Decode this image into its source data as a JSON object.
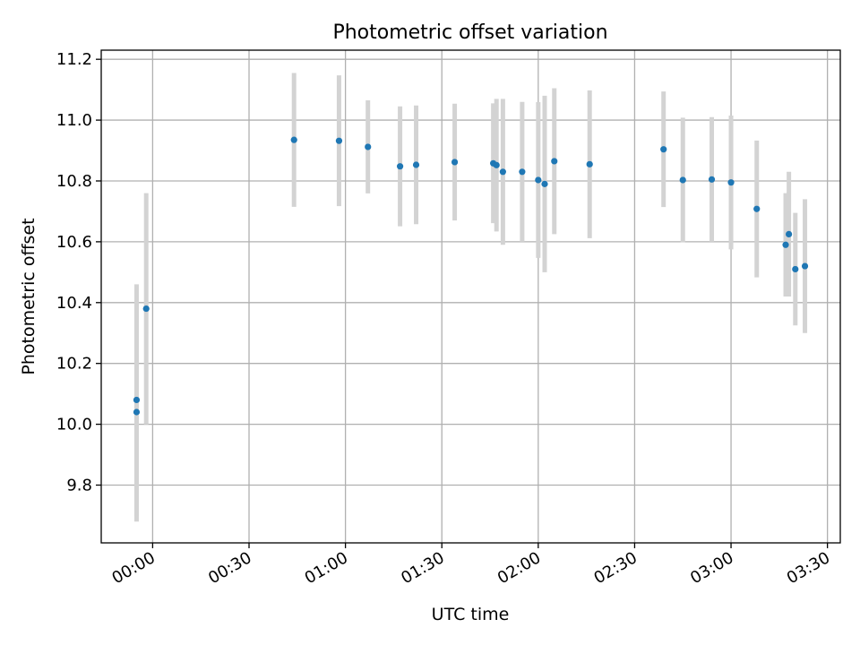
{
  "chart_data": {
    "type": "scatter",
    "title": "Photometric offset variation",
    "xlabel": "UTC time",
    "ylabel": "Photometric offset",
    "x_axis_type": "time",
    "xlim": [
      "23:44",
      "03:34"
    ],
    "ylim": [
      9.61,
      11.23
    ],
    "x_ticks": [
      "00:00",
      "00:30",
      "01:00",
      "01:30",
      "02:00",
      "02:30",
      "03:00",
      "03:30"
    ],
    "y_ticks": [
      "9.8",
      "10.0",
      "10.2",
      "10.4",
      "10.6",
      "10.8",
      "11.0",
      "11.2"
    ],
    "grid": true,
    "colors": {
      "points": "#1f77b4",
      "error_bars": "#d3d3d3",
      "grid": "#b0b0b0"
    },
    "series": [
      {
        "points": [
          {
            "x": "23:55",
            "y": 10.04,
            "err": 0.36
          },
          {
            "x": "23:55",
            "y": 10.08,
            "err": 0.38
          },
          {
            "x": "23:58",
            "y": 10.38,
            "err": 0.38
          },
          {
            "x": "00:44",
            "y": 10.935,
            "err": 0.22
          },
          {
            "x": "00:58",
            "y": 10.932,
            "err": 0.215
          },
          {
            "x": "01:07",
            "y": 10.912,
            "err": 0.153
          },
          {
            "x": "01:17",
            "y": 10.848,
            "err": 0.197
          },
          {
            "x": "01:22",
            "y": 10.853,
            "err": 0.195
          },
          {
            "x": "01:34",
            "y": 10.862,
            "err": 0.192
          },
          {
            "x": "01:46",
            "y": 10.858,
            "err": 0.197
          },
          {
            "x": "01:47",
            "y": 10.852,
            "err": 0.218
          },
          {
            "x": "01:49",
            "y": 10.83,
            "err": 0.24
          },
          {
            "x": "01:55",
            "y": 10.83,
            "err": 0.23
          },
          {
            "x": "02:00",
            "y": 10.803,
            "err": 0.256
          },
          {
            "x": "02:02",
            "y": 10.79,
            "err": 0.29
          },
          {
            "x": "02:05",
            "y": 10.865,
            "err": 0.24
          },
          {
            "x": "02:16",
            "y": 10.855,
            "err": 0.243
          },
          {
            "x": "02:39",
            "y": 10.904,
            "err": 0.19
          },
          {
            "x": "02:45",
            "y": 10.803,
            "err": 0.205
          },
          {
            "x": "02:54",
            "y": 10.805,
            "err": 0.205
          },
          {
            "x": "03:00",
            "y": 10.795,
            "err": 0.22
          },
          {
            "x": "03:08",
            "y": 10.708,
            "err": 0.225
          },
          {
            "x": "03:17",
            "y": 10.59,
            "err": 0.17
          },
          {
            "x": "03:18",
            "y": 10.625,
            "err": 0.205
          },
          {
            "x": "03:20",
            "y": 10.51,
            "err": 0.185
          },
          {
            "x": "03:23",
            "y": 10.52,
            "err": 0.22
          }
        ]
      }
    ]
  }
}
